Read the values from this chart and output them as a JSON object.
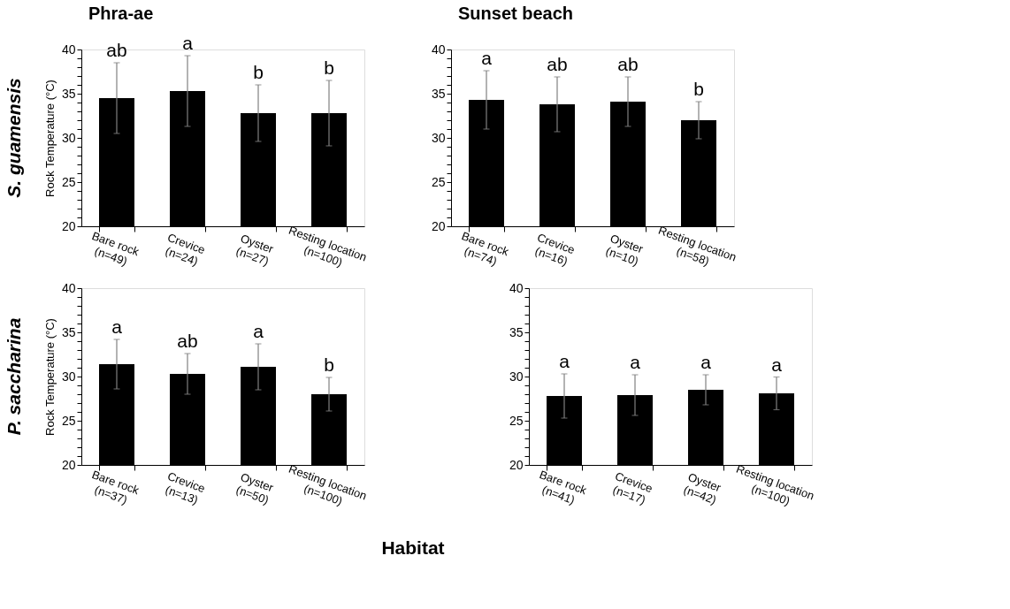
{
  "chart_data": [
    {
      "type": "bar",
      "title": "Phra-ae",
      "ylabel": "Rock Temperature (°C)",
      "categories": [
        "Bare rock\n(n=49)",
        "Crevice\n(n=24)",
        "Oyster\n(n=27)",
        "Resting location\n(n=100)"
      ],
      "values": [
        34.5,
        35.3,
        32.8,
        32.8
      ],
      "errors": [
        4.0,
        4.0,
        3.2,
        3.7
      ],
      "color": "#000000",
      "ylim": [
        20,
        40
      ],
      "yticks": [
        20,
        {
          "value": 21,
          "label": null
        },
        {
          "value": 22,
          "label": null
        },
        {
          "value": 23,
          "label": null
        },
        {
          "value": 24,
          "label": null
        },
        25,
        {
          "value": 26,
          "label": null
        },
        {
          "value": 27,
          "label": null
        },
        {
          "value": 28,
          "label": null
        },
        {
          "value": 29,
          "label": null
        },
        30,
        {
          "value": 31,
          "label": null
        },
        {
          "value": 32,
          "label": null
        },
        {
          "value": 33,
          "label": null
        },
        {
          "value": 34,
          "label": null
        },
        35,
        {
          "value": 36,
          "label": null
        },
        {
          "value": 37,
          "label": null
        },
        {
          "value": 38,
          "label": null
        },
        {
          "value": 39,
          "label": null
        },
        40
      ],
      "grid": false,
      "annotations": [
        "S. guamensis",
        {
          "text": "ab",
          "x": "Bare rock\n(n=49)",
          "y": 38.5
        },
        {
          "text": "a",
          "x": "Crevice\n(n=24)",
          "y": 39.3
        },
        {
          "text": "b",
          "x": "Oyster\n(n=27)",
          "y": 36.0
        },
        {
          "text": "b",
          "x": "Resting location\n(n=100)",
          "y": 36.5
        }
      ]
    },
    {
      "type": "bar",
      "title": "Sunset beach",
      "categories": [
        "Bare rock\n(n=74)",
        "Crevice\n(n=16)",
        "Oyster\n(n=10)",
        "Resting location\n(n=58)"
      ],
      "values": [
        34.3,
        33.8,
        34.1,
        32.0
      ],
      "errors": [
        3.3,
        3.1,
        2.8,
        2.1
      ],
      "color": "#000000",
      "ylim": [
        20,
        40
      ],
      "yticks": [
        20,
        {
          "value": 21,
          "label": null
        },
        {
          "value": 22,
          "label": null
        },
        {
          "value": 23,
          "label": null
        },
        {
          "value": 24,
          "label": null
        },
        25,
        {
          "value": 26,
          "label": null
        },
        {
          "value": 27,
          "label": null
        },
        {
          "value": 28,
          "label": null
        },
        {
          "value": 29,
          "label": null
        },
        30,
        {
          "value": 31,
          "label": null
        },
        {
          "value": 32,
          "label": null
        },
        {
          "value": 33,
          "label": null
        },
        {
          "value": 34,
          "label": null
        },
        35,
        {
          "value": 36,
          "label": null
        },
        {
          "value": 37,
          "label": null
        },
        {
          "value": 38,
          "label": null
        },
        {
          "value": 39,
          "label": null
        },
        40
      ],
      "grid": false,
      "annotations": [
        {
          "text": "a",
          "x": "Bare rock\n(n=74)",
          "y": 37.6
        },
        {
          "text": "ab",
          "x": "Crevice\n(n=16)",
          "y": 36.9
        },
        {
          "text": "ab",
          "x": "Oyster\n(n=10)",
          "y": 36.9
        },
        {
          "text": "b",
          "x": "Resting location\n(n=58)",
          "y": 34.1
        }
      ]
    },
    {
      "type": "bar",
      "ylabel": "Rock Temperature (°C)",
      "xlabel": "Habitat",
      "categories": [
        "Bare rock\n(n=37)",
        "Crevice\n(n=13)",
        "Oyster\n(n=50)",
        "Resting location\n(n=100)"
      ],
      "values": [
        31.4,
        30.3,
        31.1,
        28.0
      ],
      "errors": [
        2.8,
        2.3,
        2.6,
        1.9
      ],
      "color": "#000000",
      "ylim": [
        20,
        40
      ],
      "yticks": [
        20,
        {
          "value": 21,
          "label": null
        },
        {
          "value": 22,
          "label": null
        },
        {
          "value": 23,
          "label": null
        },
        {
          "value": 24,
          "label": null
        },
        25,
        {
          "value": 26,
          "label": null
        },
        {
          "value": 27,
          "label": null
        },
        {
          "value": 28,
          "label": null
        },
        {
          "value": 29,
          "label": null
        },
        30,
        {
          "value": 31,
          "label": null
        },
        {
          "value": 32,
          "label": null
        },
        {
          "value": 33,
          "label": null
        },
        {
          "value": 34,
          "label": null
        },
        35,
        {
          "value": 36,
          "label": null
        },
        {
          "value": 37,
          "label": null
        },
        {
          "value": 38,
          "label": null
        },
        {
          "value": 39,
          "label": null
        },
        40
      ],
      "grid": false,
      "annotations": [
        "P. saccharina",
        {
          "text": "a",
          "x": "Bare rock\n(n=37)",
          "y": 34.2
        },
        {
          "text": "ab",
          "x": "Crevice\n(n=13)",
          "y": 32.6
        },
        {
          "text": "a",
          "x": "Oyster\n(n=50)",
          "y": 33.7
        },
        {
          "text": "b",
          "x": "Resting location\n(n=100)",
          "y": 29.9
        }
      ]
    },
    {
      "type": "bar",
      "categories": [
        "Bare rock\n(n=41)",
        "Crevice\n(n=17)",
        "Oyster\n(n=42)",
        "Resting location\n(n=100)"
      ],
      "values": [
        27.8,
        27.9,
        28.5,
        28.1
      ],
      "errors": [
        2.5,
        2.3,
        1.7,
        1.85
      ],
      "color": "#000000",
      "ylim": [
        20,
        40
      ],
      "yticks": [
        20,
        {
          "value": 21,
          "label": null
        },
        {
          "value": 22,
          "label": null
        },
        {
          "value": 23,
          "label": null
        },
        {
          "value": 24,
          "label": null
        },
        25,
        {
          "value": 26,
          "label": null
        },
        {
          "value": 27,
          "label": null
        },
        {
          "value": 28,
          "label": null
        },
        {
          "value": 29,
          "label": null
        },
        30,
        {
          "value": 31,
          "label": null
        },
        {
          "value": 32,
          "label": null
        },
        {
          "value": 33,
          "label": null
        },
        {
          "value": 34,
          "label": null
        },
        35,
        {
          "value": 36,
          "label": null
        },
        {
          "value": 37,
          "label": null
        },
        {
          "value": 38,
          "label": null
        },
        {
          "value": 39,
          "label": null
        },
        40
      ],
      "grid": false,
      "annotations": [
        {
          "text": "a",
          "x": "Bare rock\n(n=41)",
          "y": 30.3
        },
        {
          "text": "a",
          "x": "Crevice\n(n=17)",
          "y": 30.2
        },
        {
          "text": "a",
          "x": "Oyster\n(n=42)",
          "y": 30.2
        },
        {
          "text": "a",
          "x": "Resting location\n(n=100)",
          "y": 29.95
        }
      ]
    }
  ]
}
